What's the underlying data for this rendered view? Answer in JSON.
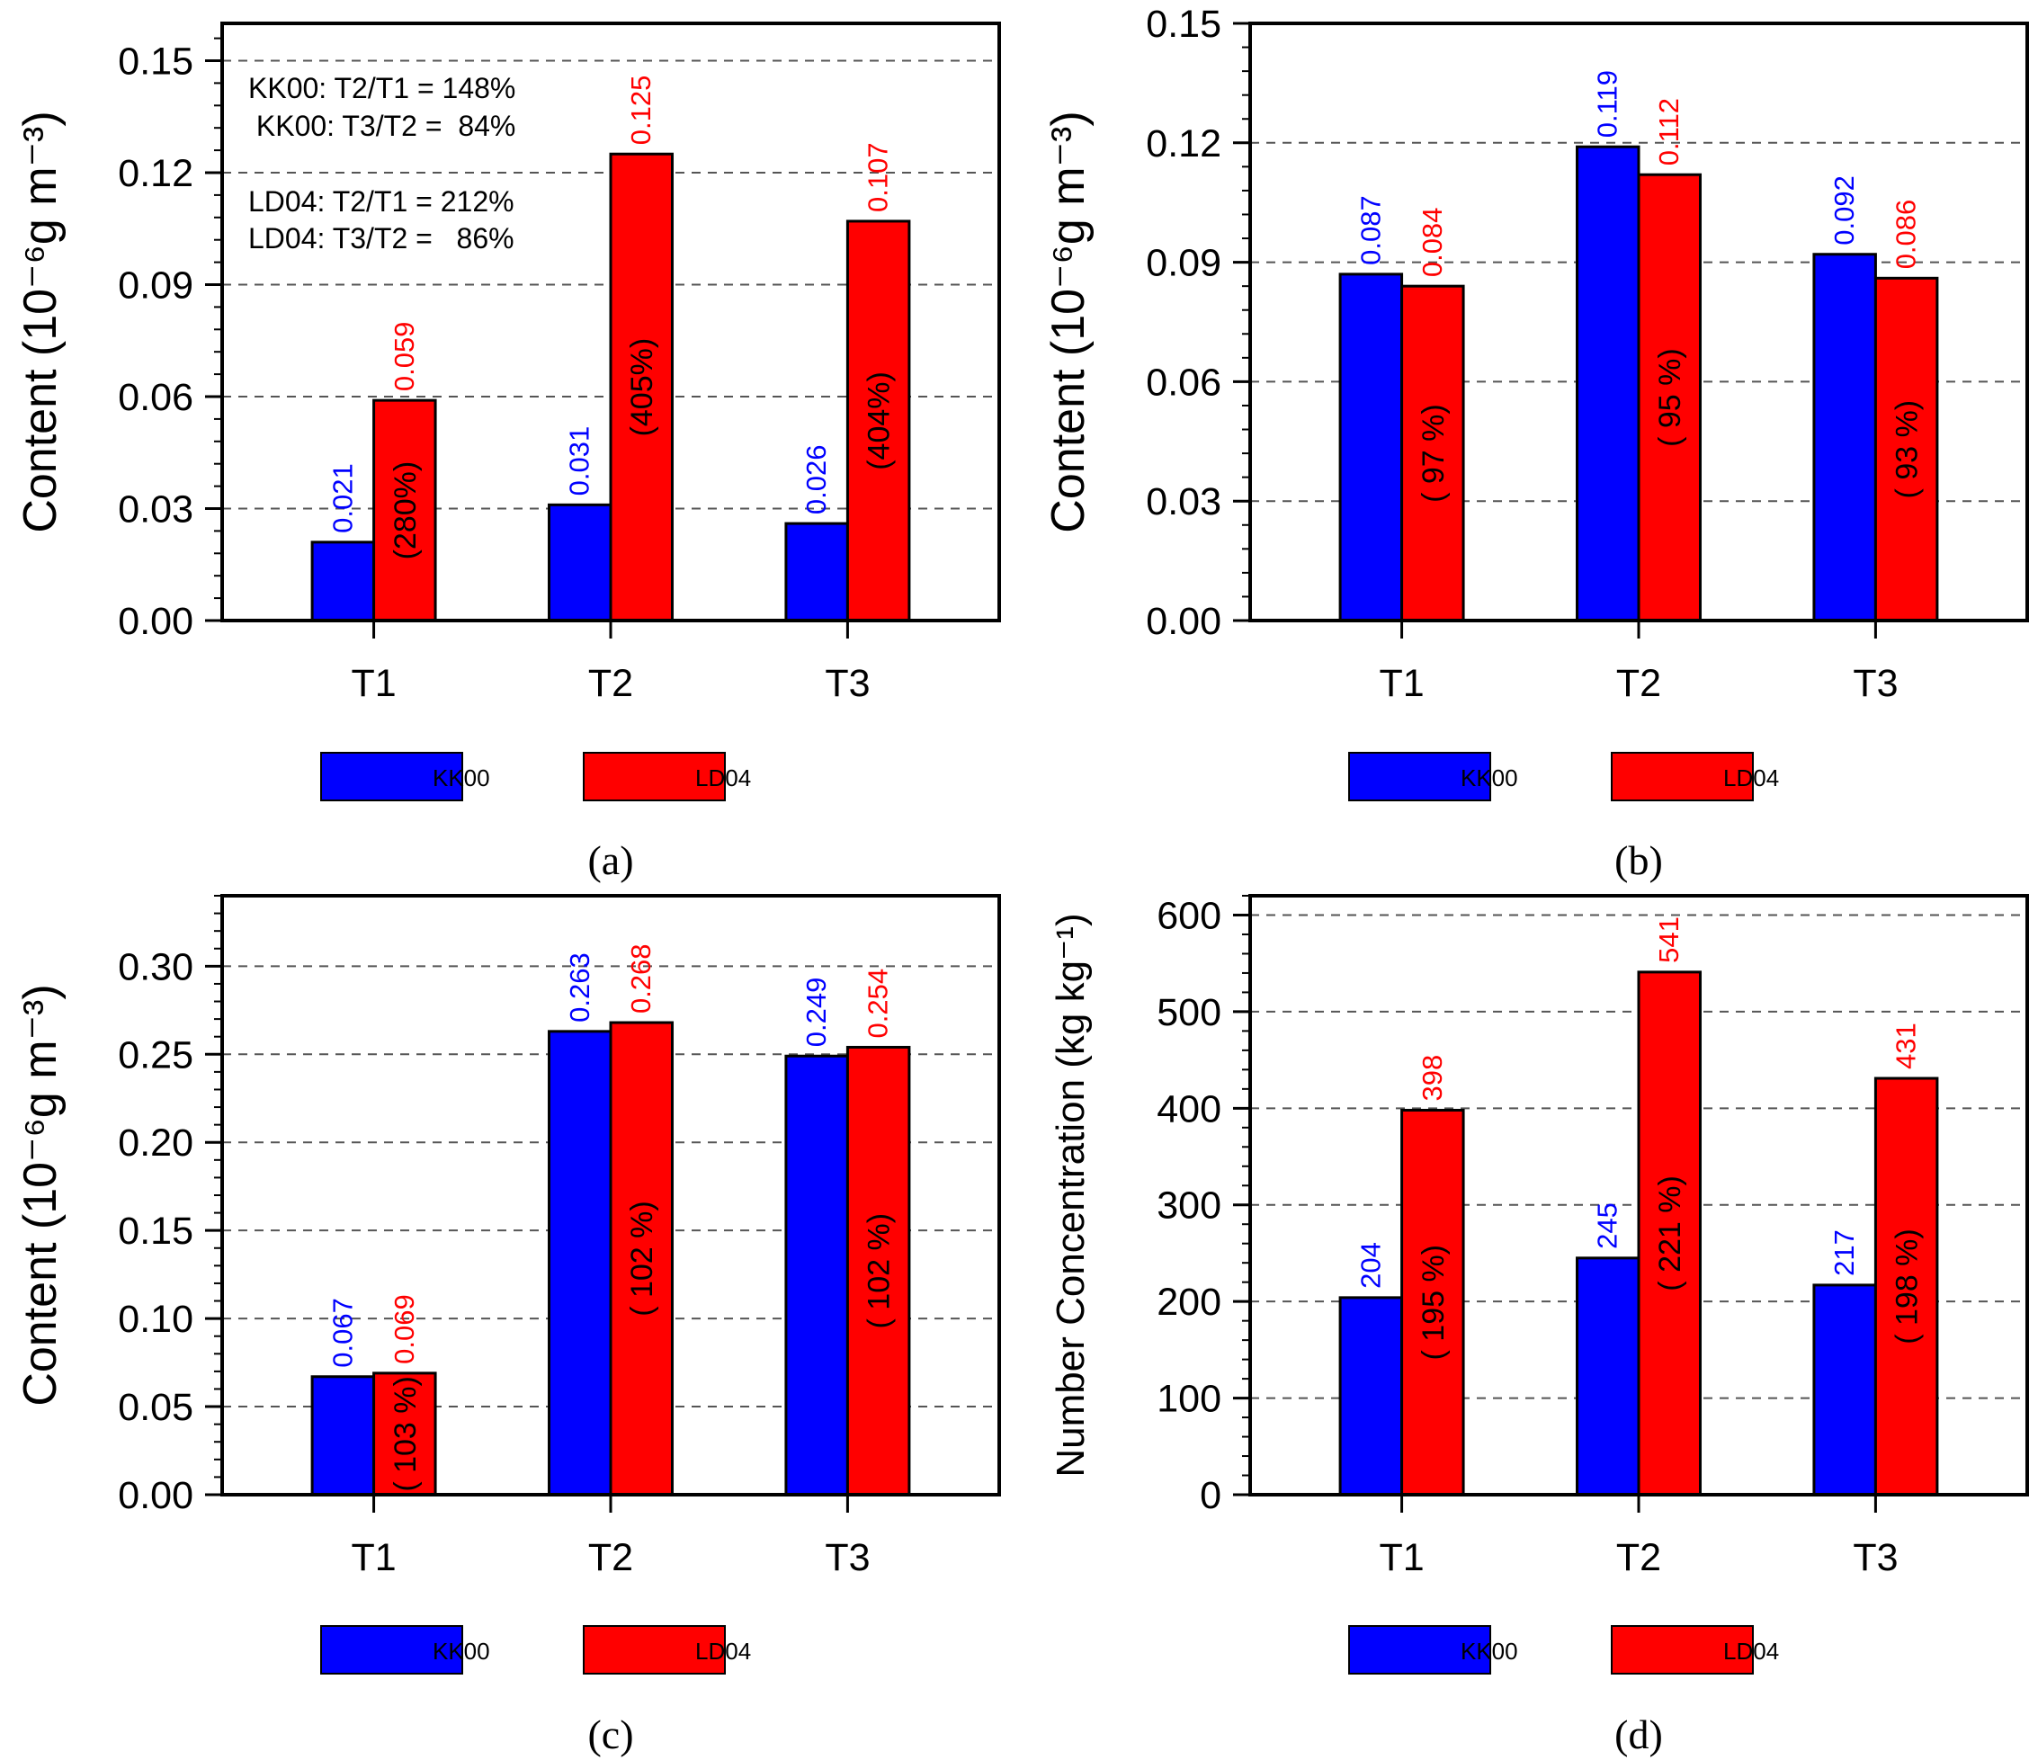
{
  "colors": {
    "KK00": "#0000ff",
    "LD04": "#ff0000",
    "frame": "#000000",
    "grid": "#555555"
  },
  "legend": [
    "KK00",
    "LD04"
  ],
  "chart_data": [
    {
      "type": "bar",
      "panel_label": "(a)",
      "ylabel": "Content (10⁻⁶g m⁻³)",
      "categories": [
        "T1",
        "T2",
        "T3"
      ],
      "ylim": [
        0,
        0.16
      ],
      "yticks": [
        0.0,
        0.03,
        0.06,
        0.09,
        0.12,
        0.15
      ],
      "ytick_labels": [
        "0.00",
        "0.03",
        "0.06",
        "0.09",
        "0.12",
        "0.15"
      ],
      "grid": true,
      "series": [
        {
          "name": "KK00",
          "values": [
            0.021,
            0.031,
            0.026
          ],
          "labels": [
            "0.021",
            "0.031",
            "0.026"
          ]
        },
        {
          "name": "LD04",
          "values": [
            0.059,
            0.125,
            0.107
          ],
          "labels": [
            "0.059",
            "0.125",
            "0.107"
          ]
        }
      ],
      "ratio_labels": [
        "(280%)",
        "(405%)",
        "(404%)"
      ],
      "annotations": [
        "KK00: T2/T1 = 148%",
        " KK00: T3/T2 =  84%",
        "LD04: T2/T1 = 212%",
        "LD04: T3/T2 =   86%"
      ]
    },
    {
      "type": "bar",
      "panel_label": "(b)",
      "ylabel": "Content (10⁻⁶g m⁻³)",
      "categories": [
        "T1",
        "T2",
        "T3"
      ],
      "ylim": [
        0,
        0.15
      ],
      "yticks": [
        0.0,
        0.03,
        0.06,
        0.09,
        0.12,
        0.15
      ],
      "ytick_labels": [
        "0.00",
        "0.03",
        "0.06",
        "0.09",
        "0.12",
        "0.15"
      ],
      "grid": true,
      "series": [
        {
          "name": "KK00",
          "values": [
            0.087,
            0.119,
            0.092
          ],
          "labels": [
            "0.087",
            "0.119",
            "0.092"
          ]
        },
        {
          "name": "LD04",
          "values": [
            0.084,
            0.112,
            0.086
          ],
          "labels": [
            "0.084",
            "0.112",
            "0.086"
          ]
        }
      ],
      "ratio_labels": [
        "(  97 %)",
        "(  95 %)",
        "(  93 %)"
      ]
    },
    {
      "type": "bar",
      "panel_label": "(c)",
      "ylabel": "Content (10⁻⁶g m⁻³)",
      "categories": [
        "T1",
        "T2",
        "T3"
      ],
      "ylim": [
        0,
        0.34
      ],
      "yticks": [
        0.0,
        0.05,
        0.1,
        0.15,
        0.2,
        0.25,
        0.3
      ],
      "ytick_labels": [
        "0.00",
        "0.05",
        "0.10",
        "0.15",
        "0.20",
        "0.25",
        "0.30"
      ],
      "grid": true,
      "series": [
        {
          "name": "KK00",
          "values": [
            0.067,
            0.263,
            0.249
          ],
          "labels": [
            "0.067",
            "0.263",
            "0.249"
          ]
        },
        {
          "name": "LD04",
          "values": [
            0.069,
            0.268,
            0.254
          ],
          "labels": [
            "0.069",
            "0.268",
            "0.254"
          ]
        }
      ],
      "ratio_labels": [
        "( 103 %)",
        "( 102 %)",
        "( 102 %)"
      ]
    },
    {
      "type": "bar",
      "panel_label": "(d)",
      "ylabel": "Number Concentration (kg kg⁻¹)",
      "categories": [
        "T1",
        "T2",
        "T3"
      ],
      "ylim": [
        0,
        620
      ],
      "yticks": [
        0,
        100,
        200,
        300,
        400,
        500,
        600
      ],
      "ytick_labels": [
        "0",
        "100",
        "200",
        "300",
        "400",
        "500",
        "600"
      ],
      "grid": true,
      "series": [
        {
          "name": "KK00",
          "values": [
            204,
            245,
            217
          ],
          "labels": [
            "204",
            "245",
            "217"
          ]
        },
        {
          "name": "LD04",
          "values": [
            398,
            541,
            431
          ],
          "labels": [
            "398",
            "541",
            "431"
          ]
        }
      ],
      "ratio_labels": [
        "(  195 %)",
        "(  221 %)",
        "(  198 %)"
      ]
    }
  ]
}
